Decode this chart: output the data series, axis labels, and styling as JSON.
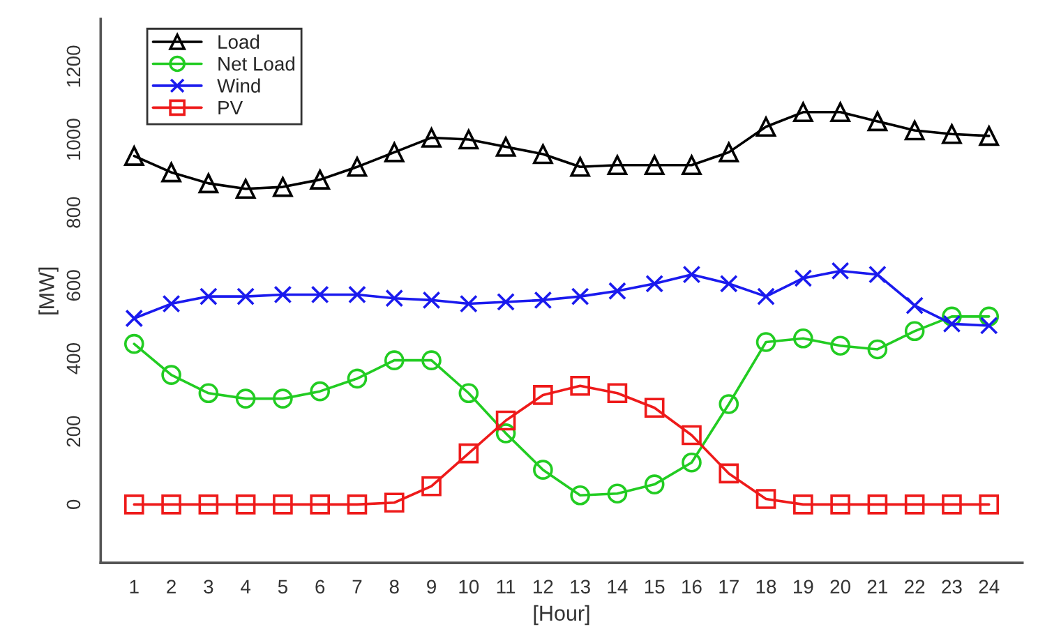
{
  "chart_data": {
    "type": "line",
    "xlabel": "[Hour]",
    "ylabel": "[MW]",
    "x": [
      1,
      2,
      3,
      4,
      5,
      6,
      7,
      8,
      9,
      10,
      11,
      12,
      13,
      14,
      15,
      16,
      17,
      18,
      19,
      20,
      21,
      22,
      23,
      24
    ],
    "xlim": [
      0.1,
      24.9
    ],
    "xticks": [
      1,
      2,
      3,
      4,
      5,
      6,
      7,
      8,
      9,
      10,
      11,
      12,
      13,
      14,
      15,
      16,
      17,
      18,
      19,
      20,
      21,
      22,
      23,
      24
    ],
    "ylim": [
      -160,
      1330
    ],
    "yticks": [
      0,
      200,
      400,
      600,
      800,
      1000,
      1200
    ],
    "grid": false,
    "legend": "top left",
    "line_style": "solid",
    "series": [
      {
        "name": "Load",
        "color": "#000000",
        "marker": "triangle",
        "values": [
          955,
          910,
          880,
          865,
          870,
          890,
          925,
          965,
          1005,
          1000,
          980,
          960,
          925,
          930,
          930,
          930,
          965,
          1035,
          1075,
          1075,
          1050,
          1025,
          1015,
          1010
        ]
      },
      {
        "name": "Net Load",
        "color": "#22cc22",
        "marker": "circle",
        "values": [
          440,
          355,
          305,
          290,
          290,
          310,
          345,
          395,
          395,
          305,
          195,
          95,
          25,
          30,
          55,
          115,
          275,
          445,
          455,
          435,
          425,
          475,
          515,
          515
        ]
      },
      {
        "name": "Wind",
        "color": "#1a1aee",
        "marker": "cross",
        "values": [
          510,
          550,
          570,
          570,
          575,
          575,
          575,
          565,
          560,
          550,
          555,
          560,
          570,
          585,
          605,
          630,
          605,
          570,
          620,
          640,
          630,
          545,
          495,
          490
        ]
      },
      {
        "name": "PV",
        "color": "#ee1a1a",
        "marker": "square",
        "values": [
          0,
          0,
          0,
          0,
          0,
          0,
          0,
          5,
          50,
          140,
          230,
          300,
          325,
          305,
          265,
          190,
          85,
          15,
          0,
          0,
          0,
          0,
          0,
          0
        ]
      }
    ]
  }
}
